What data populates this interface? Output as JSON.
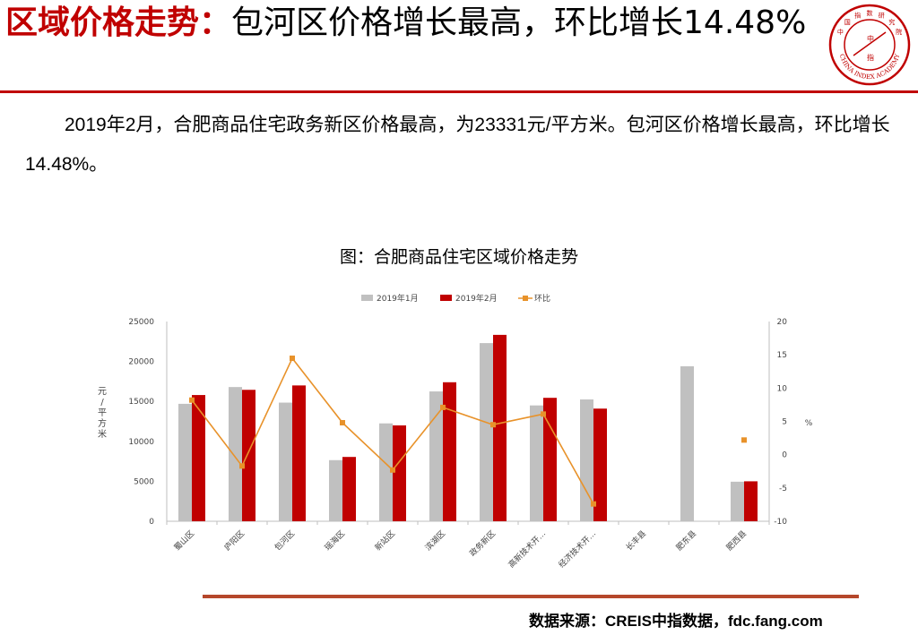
{
  "header": {
    "title_highlight": "区域价格走势：",
    "title_rest": "包河区价格增长最高，环比增长14.48%"
  },
  "logo": {
    "chars": [
      "中",
      "国",
      "指",
      "数",
      "研",
      "究",
      "院"
    ],
    "center_top": "中",
    "center_bottom": "指",
    "english": "CHINA INDEX ACADEMY",
    "color": "#c00000"
  },
  "summary": "2019年2月，合肥商品住宅政务新区价格最高，为23331元/平方米。包河区价格增长最高，环比增长14.48%。",
  "chart_title": "图：合肥商品住宅区域价格走势",
  "chart_data": {
    "type": "bar",
    "categories": [
      "蜀山区",
      "庐阳区",
      "包河区",
      "瑶海区",
      "新站区",
      "滨湖区",
      "政务新区",
      "高新技术开…",
      "经济技术开…",
      "长丰县",
      "肥东县",
      "肥西县"
    ],
    "series": [
      {
        "name": "2019年1月",
        "type": "bar",
        "color": "#c0c0c0",
        "values": [
          14700,
          16800,
          14850,
          7650,
          12250,
          16250,
          22300,
          14500,
          15250,
          null,
          19400,
          4950
        ]
      },
      {
        "name": "2019年2月",
        "type": "bar",
        "color": "#c00000",
        "values": [
          15800,
          16450,
          17000,
          8050,
          12000,
          17400,
          23331,
          15450,
          14100,
          null,
          null,
          5000
        ]
      },
      {
        "name": "环比",
        "type": "line",
        "axis": "right",
        "color": "#e8922a",
        "values": [
          8.2,
          -1.7,
          14.48,
          4.8,
          -2.3,
          7.1,
          4.5,
          6.1,
          -7.4,
          null,
          null,
          2.2
        ]
      }
    ],
    "ylabel": "元/平方米",
    "ylabel_chars": [
      "元",
      "/",
      "平",
      "方",
      "米"
    ],
    "ylim": [
      0,
      25000
    ],
    "yticks": [
      "0",
      "5000",
      "10000",
      "15000",
      "20000",
      "25000"
    ],
    "y2label": "%",
    "y2lim": [
      -10,
      20
    ],
    "y2ticks": [
      "-10",
      "-5",
      "0",
      "5",
      "10",
      "15",
      "20"
    ],
    "legend": "top",
    "grid": false
  },
  "source": "数据来源：CREIS中指数据，fdc.fang.com"
}
